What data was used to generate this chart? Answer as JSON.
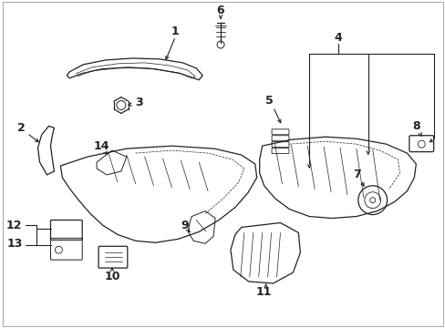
{
  "background_color": "#ffffff",
  "line_color": "#222222",
  "figsize": [
    4.89,
    3.6
  ],
  "dpi": 100
}
